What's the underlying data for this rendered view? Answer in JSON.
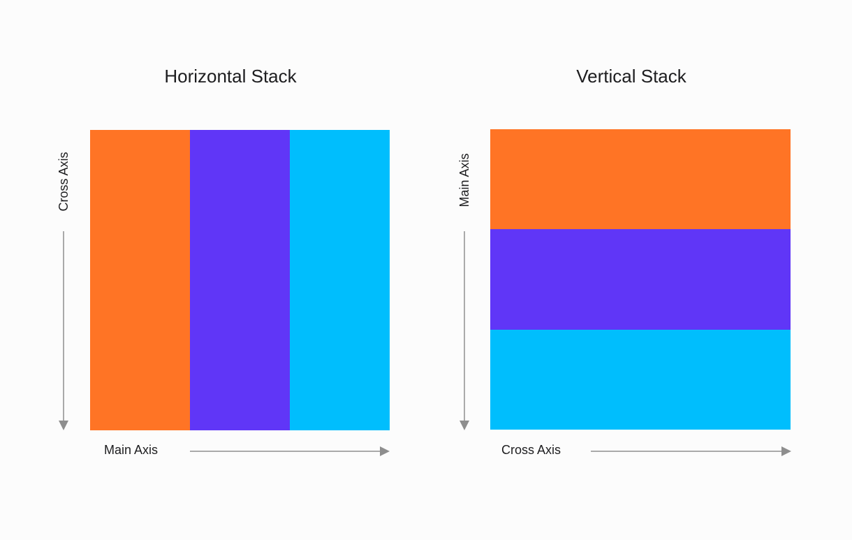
{
  "horizontal": {
    "title": "Horizontal Stack",
    "main_axis_label": "Main Axis",
    "cross_axis_label": "Cross Axis",
    "blocks": [
      {
        "name": "orange-block",
        "color": "#ff7425"
      },
      {
        "name": "purple-block",
        "color": "#6036f7"
      },
      {
        "name": "cyan-block",
        "color": "#00befd"
      }
    ]
  },
  "vertical": {
    "title": "Vertical Stack",
    "main_axis_label": "Main Axis",
    "cross_axis_label": "Cross Axis",
    "blocks": [
      {
        "name": "orange-block",
        "color": "#ff7425"
      },
      {
        "name": "purple-block",
        "color": "#6036f7"
      },
      {
        "name": "cyan-block",
        "color": "#00befd"
      }
    ]
  },
  "colors": {
    "arrow": "#8e8e8e",
    "text": "#1d1d1f",
    "background": "#fcfcfc"
  }
}
